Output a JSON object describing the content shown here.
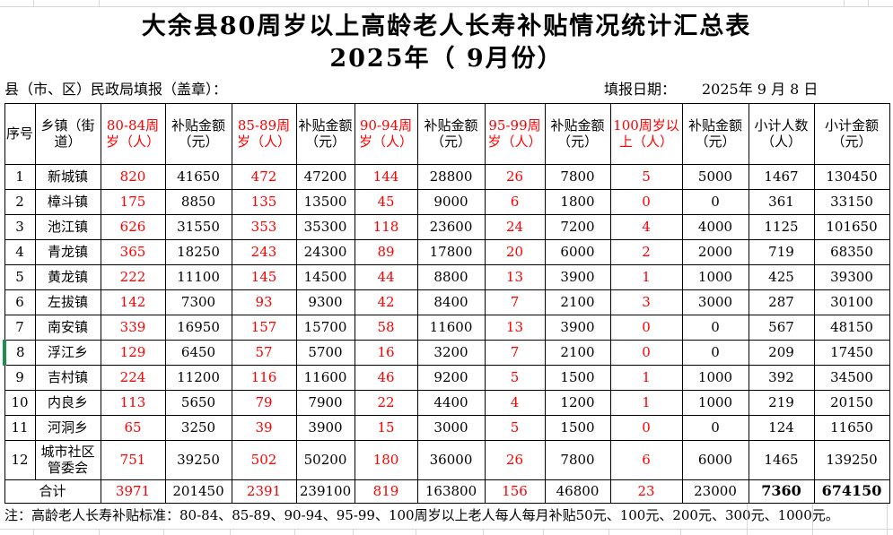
{
  "app": {
    "title_line1": "大余县80周岁以上高龄老人长寿补贴情况统计汇总表",
    "title_line2": "2025年（ 9月份）"
  },
  "meta": {
    "fill_label": "县（市、区）民政局填报（盖章）：",
    "date_label": "填报日期：",
    "date_value": "2025年 9 月 8 日"
  },
  "colors": {
    "count_red": "#FF0000",
    "selection_green": "#1E8E50",
    "gridline_gray": "#D6D6D6",
    "border_black": "#000000"
  },
  "selection": {
    "selected_row_no": "8"
  },
  "table": {
    "columns": [
      {
        "label": "序号",
        "red": false
      },
      {
        "label": "乡镇（街道）",
        "red": false
      },
      {
        "label": "80-84周岁（人）",
        "red": true
      },
      {
        "label": "补贴金额（元）",
        "red": false
      },
      {
        "label": "85-89周岁（人）",
        "red": true
      },
      {
        "label": "补贴金额（元）",
        "red": false
      },
      {
        "label": "90-94周岁（人）",
        "red": true
      },
      {
        "label": "补贴金额（元）",
        "red": false
      },
      {
        "label": "95-99周岁（人）",
        "red": true
      },
      {
        "label": "补贴金额（元）",
        "red": false
      },
      {
        "label": "100周岁以上（人）",
        "red": true
      },
      {
        "label": "补贴金额（元）",
        "red": false
      },
      {
        "label": "小计人数（人）",
        "red": false
      },
      {
        "label": "小计金额（元）",
        "red": false
      }
    ],
    "rows": [
      [
        "1",
        "新城镇",
        "820",
        "41650",
        "472",
        "47200",
        "144",
        "28800",
        "26",
        "7800",
        "5",
        "5000",
        "1467",
        "130450"
      ],
      [
        "2",
        "樟斗镇",
        "175",
        "8850",
        "135",
        "13500",
        "45",
        "9000",
        "6",
        "1800",
        "0",
        "0",
        "361",
        "33150"
      ],
      [
        "3",
        "池江镇",
        "626",
        "31550",
        "353",
        "35300",
        "118",
        "23600",
        "24",
        "7200",
        "4",
        "4000",
        "1125",
        "101650"
      ],
      [
        "4",
        "青龙镇",
        "365",
        "18250",
        "243",
        "24300",
        "89",
        "17800",
        "20",
        "6000",
        "2",
        "2000",
        "719",
        "68350"
      ],
      [
        "5",
        "黄龙镇",
        "222",
        "11100",
        "145",
        "14500",
        "44",
        "8800",
        "13",
        "3900",
        "1",
        "1000",
        "425",
        "39300"
      ],
      [
        "6",
        "左拔镇",
        "142",
        "7300",
        "93",
        "9300",
        "42",
        "8400",
        "7",
        "2100",
        "3",
        "3000",
        "287",
        "30100"
      ],
      [
        "7",
        "南安镇",
        "339",
        "16950",
        "157",
        "15700",
        "58",
        "11600",
        "13",
        "3900",
        "0",
        "0",
        "567",
        "48150"
      ],
      [
        "8",
        "浮江乡",
        "129",
        "6450",
        "57",
        "5700",
        "16",
        "3200",
        "7",
        "2100",
        "0",
        "0",
        "209",
        "17450"
      ],
      [
        "9",
        "吉村镇",
        "224",
        "11200",
        "116",
        "11600",
        "46",
        "9200",
        "5",
        "1500",
        "1",
        "1000",
        "392",
        "34500"
      ],
      [
        "10",
        "内良乡",
        "113",
        "5650",
        "79",
        "7900",
        "22",
        "4400",
        "4",
        "1200",
        "1",
        "1000",
        "219",
        "20150"
      ],
      [
        "11",
        "河洞乡",
        "65",
        "3250",
        "39",
        "3900",
        "15",
        "3000",
        "5",
        "1500",
        "0",
        "0",
        "124",
        "11650"
      ],
      [
        "12",
        "城市社区管委会",
        "751",
        "39250",
        "502",
        "50200",
        "180",
        "36000",
        "26",
        "7800",
        "6",
        "6000",
        "1465",
        "139250"
      ]
    ],
    "total_label": "合计",
    "total": [
      "3971",
      "201450",
      "2391",
      "239100",
      "819",
      "163800",
      "156",
      "46800",
      "23",
      "23000",
      "7360",
      "674150"
    ]
  },
  "note": "注：高龄老人长寿补贴标准：80-84、85-89、90-94、95-99、100周岁以上老人每人每月补贴50元、100元、200元、300元、1000元。"
}
